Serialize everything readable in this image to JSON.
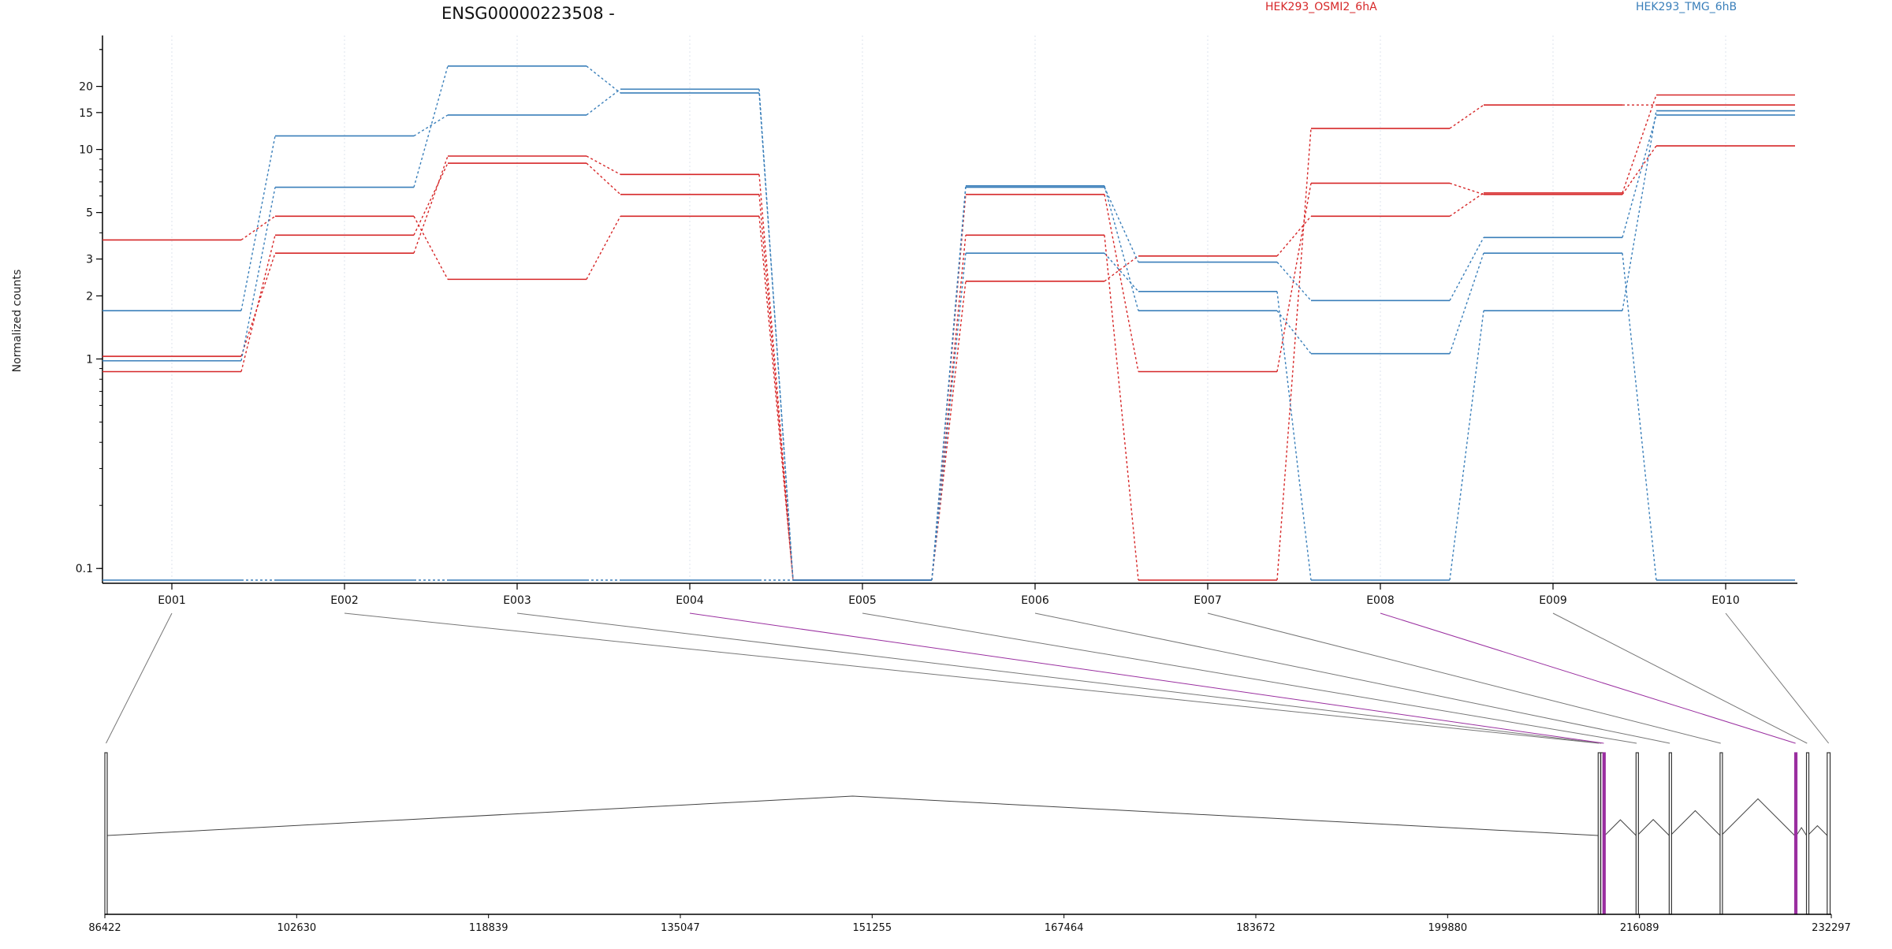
{
  "chart_data": {
    "type": "line",
    "title": "ENSG00000223508 -",
    "ylabel": "Normalized counts",
    "xlabel": "",
    "y_scale": "log",
    "ylim": [
      0.085,
      35
    ],
    "y_ticks": [
      0.1,
      1,
      2,
      3,
      5,
      10,
      15,
      20
    ],
    "y_tick_labels": [
      "0.1",
      "1",
      "2",
      "3",
      "5",
      "10",
      "15",
      "20"
    ],
    "categories": [
      "E001",
      "E002",
      "E003",
      "E004",
      "E005",
      "E006",
      "E007",
      "E008",
      "E009",
      "E010"
    ],
    "grid": true,
    "legend": [
      {
        "name": "HEK293_OSMI2_6hA",
        "color": "#d62728"
      },
      {
        "name": "HEK293_TMG_6hB",
        "color": "#3a7fba"
      }
    ],
    "legend_position": "top-right",
    "series": [
      {
        "group": "HEK293_OSMI2_6hA",
        "color": "#d62728",
        "values": [
          3.7,
          4.8,
          2.4,
          4.8,
          0.088,
          2.35,
          3.1,
          4.8,
          6.2,
          18.2
        ]
      },
      {
        "group": "HEK293_OSMI2_6hA",
        "color": "#d62728",
        "values": [
          1.03,
          3.2,
          9.3,
          7.6,
          0.088,
          3.9,
          0.088,
          12.6,
          16.3,
          16.3
        ]
      },
      {
        "group": "HEK293_OSMI2_6hA",
        "color": "#d62728",
        "values": [
          0.87,
          3.9,
          8.6,
          6.1,
          0.088,
          6.1,
          0.87,
          6.9,
          6.1,
          10.4
        ]
      },
      {
        "group": "HEK293_TMG_6hB",
        "color": "#3a7fba",
        "values": [
          1.7,
          11.6,
          14.6,
          19.4,
          0.088,
          3.2,
          2.1,
          0.088,
          1.7,
          15.3
        ]
      },
      {
        "group": "HEK293_TMG_6hB",
        "color": "#3a7fba",
        "values": [
          0.98,
          6.6,
          25.0,
          18.6,
          0.088,
          6.6,
          2.9,
          1.9,
          3.8,
          14.6
        ]
      },
      {
        "group": "HEK293_TMG_6hB",
        "color": "#3a7fba",
        "values": [
          0.088,
          0.088,
          0.088,
          0.088,
          0.088,
          6.7,
          1.7,
          1.06,
          3.2,
          0.088
        ]
      }
    ],
    "gene_model": {
      "coordinate_range": [
        86422,
        232297
      ],
      "coordinate_ticks": [
        86422,
        102630,
        118839,
        135047,
        151255,
        167464,
        183672,
        199880,
        216089,
        232297
      ],
      "coordinate_tick_labels": [
        "86422",
        "102630",
        "118839",
        "135047",
        "151255",
        "167464",
        "183672",
        "199880",
        "216089",
        "232297"
      ],
      "exons": [
        {
          "id": "E001",
          "start": 86422,
          "end": 86622,
          "highlight": false
        },
        {
          "id": "E002",
          "start": 212600,
          "end": 212700,
          "highlight": false
        },
        {
          "id": "E003",
          "start": 212820,
          "end": 212920,
          "highlight": false
        },
        {
          "id": "E004",
          "start": 213000,
          "end": 213150,
          "highlight": true
        },
        {
          "id": "E005",
          "start": 215800,
          "end": 215900,
          "highlight": false
        },
        {
          "id": "E006",
          "start": 218600,
          "end": 218700,
          "highlight": false
        },
        {
          "id": "E007",
          "start": 222900,
          "end": 223000,
          "highlight": false
        },
        {
          "id": "E008",
          "start": 229200,
          "end": 229350,
          "highlight": true
        },
        {
          "id": "E009",
          "start": 230200,
          "end": 230300,
          "highlight": false
        },
        {
          "id": "E010",
          "start": 231950,
          "end": 232197,
          "highlight": false
        }
      ],
      "highlight_color": "#9a2fa0"
    }
  }
}
